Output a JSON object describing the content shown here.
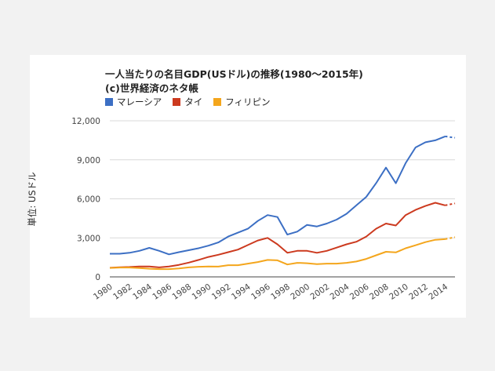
{
  "chart_data": {
    "type": "line",
    "title_line1": "一人当たりの名目GDP(USドル)の推移(1980〜2015年)",
    "title_line2": "(c)世界経済のネタ帳",
    "ylabel": "単位: USドル",
    "xlabel": "",
    "ylim": [
      0,
      12000
    ],
    "yticks": [
      0,
      3000,
      6000,
      9000,
      12000
    ],
    "ytick_labels": [
      "0",
      "3,000",
      "6,000",
      "9,000",
      "12,000"
    ],
    "xticks": [
      1980,
      1982,
      1984,
      1986,
      1988,
      1990,
      1992,
      1994,
      1996,
      1998,
      2000,
      2002,
      2004,
      2006,
      2008,
      2010,
      2012,
      2014
    ],
    "xtick_labels": [
      "1980",
      "1982",
      "1984",
      "1986",
      "1988",
      "1990",
      "1992",
      "1994",
      "1996",
      "1998",
      "2000",
      "2002",
      "2004",
      "2006",
      "2008",
      "2010",
      "2012",
      "2014"
    ],
    "grid": true,
    "legend_position": "top-left",
    "x": [
      1980,
      1981,
      1982,
      1983,
      1984,
      1985,
      1986,
      1987,
      1988,
      1989,
      1990,
      1991,
      1992,
      1993,
      1994,
      1995,
      1996,
      1997,
      1998,
      1999,
      2000,
      2001,
      2002,
      2003,
      2004,
      2005,
      2006,
      2007,
      2008,
      2009,
      2010,
      2011,
      2012,
      2013,
      2014,
      2015
    ],
    "estimate_from": 2015,
    "series": [
      {
        "name": "マレーシア",
        "color": "#3c6fc4",
        "values": [
          1780,
          1780,
          1850,
          2000,
          2230,
          2000,
          1730,
          1900,
          2050,
          2200,
          2400,
          2650,
          3100,
          3400,
          3700,
          4300,
          4750,
          4600,
          3250,
          3480,
          4000,
          3880,
          4100,
          4400,
          4850,
          5500,
          6150,
          7200,
          8400,
          7200,
          8750,
          9950,
          10350,
          10500,
          10800,
          10700
        ]
      },
      {
        "name": "タイ",
        "color": "#cc3a1f",
        "values": [
          700,
          740,
          760,
          800,
          800,
          730,
          800,
          920,
          1100,
          1300,
          1530,
          1700,
          1900,
          2100,
          2450,
          2800,
          3000,
          2500,
          1850,
          2000,
          2000,
          1850,
          2000,
          2250,
          2500,
          2700,
          3100,
          3700,
          4100,
          3950,
          4750,
          5150,
          5450,
          5700,
          5500,
          5650
        ]
      },
      {
        "name": "フィリピン",
        "color": "#f4a61d",
        "values": [
          690,
          720,
          720,
          680,
          630,
          600,
          600,
          650,
          730,
          780,
          800,
          790,
          900,
          900,
          1020,
          1140,
          1300,
          1270,
          950,
          1080,
          1050,
          980,
          1020,
          1020,
          1080,
          1180,
          1380,
          1660,
          1930,
          1880,
          2200,
          2430,
          2670,
          2850,
          2900,
          3050
        ]
      }
    ]
  }
}
